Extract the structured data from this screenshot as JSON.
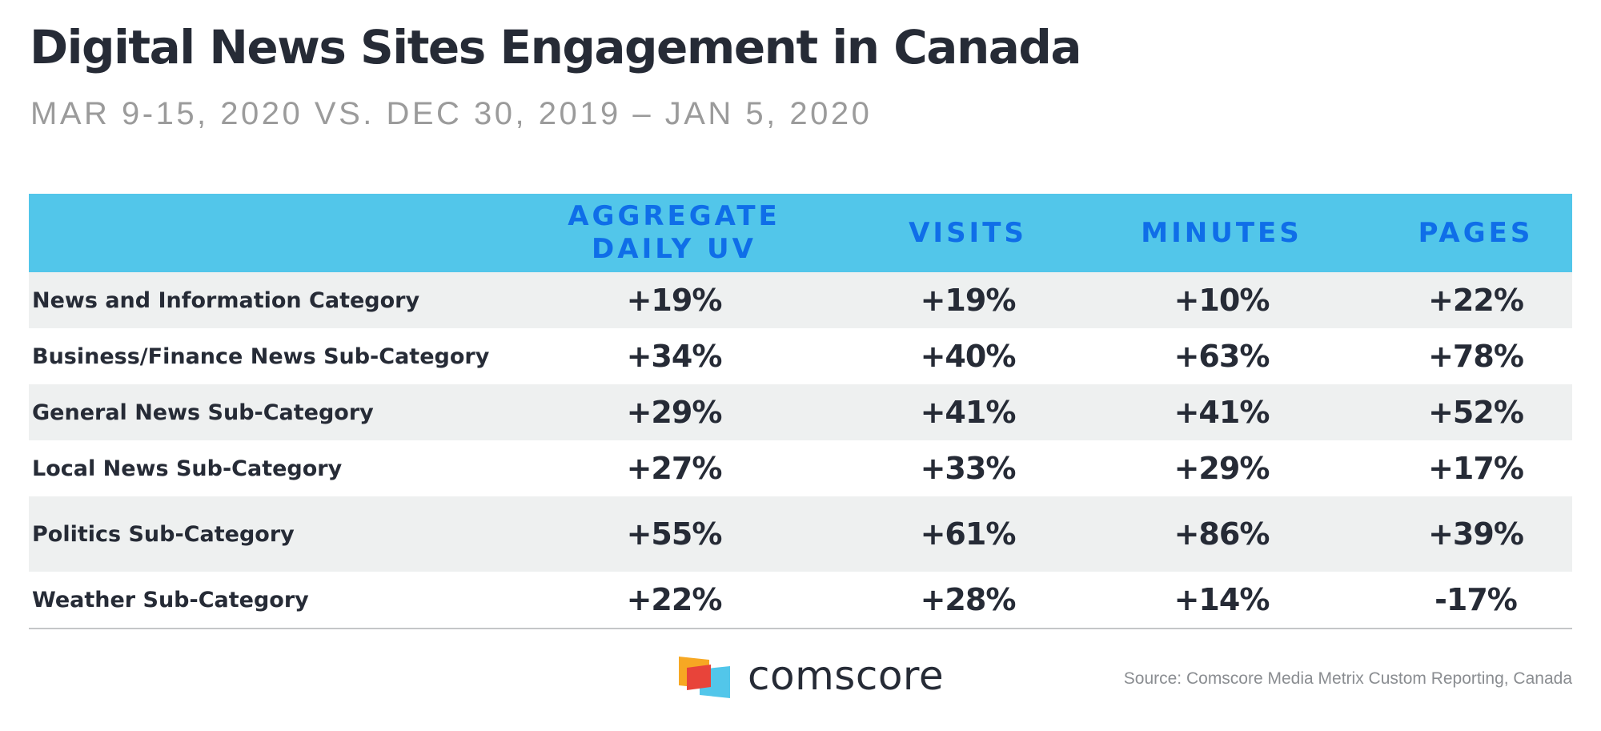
{
  "header": {
    "title": "Digital News Sites Engagement in Canada",
    "subtitle": "MAR 9-15, 2020 VS. DEC 30, 2019 – JAN 5, 2020"
  },
  "colors": {
    "header_band": "#52c6ea",
    "header_text": "#0f6ee8",
    "row_shade": "#eef0f0",
    "text": "#262b36"
  },
  "chart_data": {
    "type": "table",
    "title": "Digital News Sites Engagement in Canada",
    "subtitle": "MAR 9-15, 2020 VS. DEC 30, 2019 – JAN 5, 2020",
    "columns": [
      "AGGREGATE DAILY UV",
      "VISITS",
      "MINUTES",
      "PAGES"
    ],
    "column_lines": [
      [
        "AGGREGATE",
        "DAILY UV"
      ],
      [
        "VISITS"
      ],
      [
        "MINUTES"
      ],
      [
        "PAGES"
      ]
    ],
    "rows": [
      {
        "label": "News and Information Category",
        "values": [
          "+19%",
          "+19%",
          "+10%",
          "+22%"
        ]
      },
      {
        "label": "Business/Finance News Sub-Category",
        "values": [
          "+34%",
          "+40%",
          "+63%",
          "+78%"
        ]
      },
      {
        "label": "General News Sub-Category",
        "values": [
          "+29%",
          "+41%",
          "+41%",
          "+52%"
        ]
      },
      {
        "label": "Local News Sub-Category",
        "values": [
          "+27%",
          "+33%",
          "+29%",
          "+17%"
        ]
      },
      {
        "label": "Politics Sub-Category",
        "values": [
          "+55%",
          "+61%",
          "+86%",
          "+39%"
        ]
      },
      {
        "label": "Weather Sub-Category",
        "values": [
          "+22%",
          "+28%",
          "+14%",
          "-17%"
        ]
      }
    ]
  },
  "footer": {
    "brand": "comscore",
    "logo_icon": "comscore-logo-icon",
    "source": "Source: Comscore Media Metrix Custom Reporting, Canada"
  }
}
